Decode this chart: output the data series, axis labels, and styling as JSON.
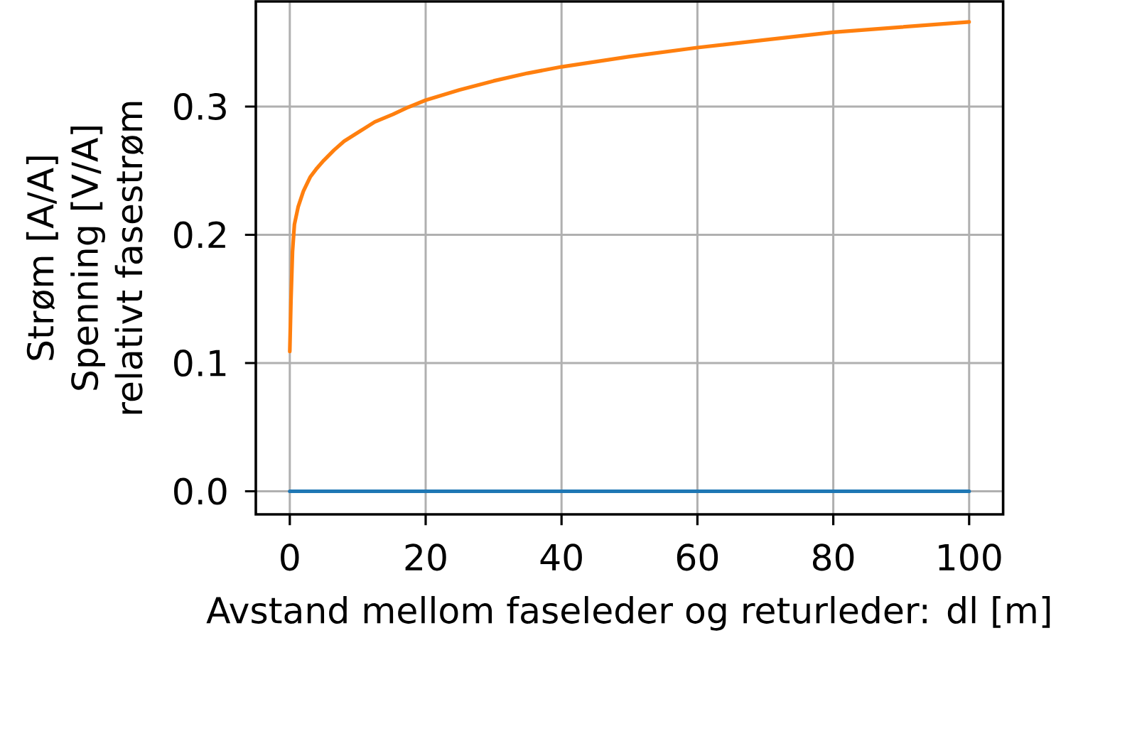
{
  "chart_data": {
    "type": "line",
    "xlabel": "Avstand mellom faseleder og returleder: dl [m]",
    "ylabel": "Strøm [A/A]\nSpenning [V/A]\nrelativt fasestrøm",
    "xlim": [
      -5,
      105
    ],
    "ylim": [
      -0.018,
      0.382
    ],
    "xticks": [
      0,
      20,
      40,
      60,
      80,
      100
    ],
    "yticks": [
      {
        "value": 0,
        "label": "0.0"
      },
      0.1,
      0.2,
      0.3
    ],
    "grid": true,
    "series": [
      {
        "color": "#1f77b4",
        "x": [
          0,
          25,
          50,
          75,
          100
        ],
        "values": [
          0,
          0,
          0,
          0,
          0
        ]
      },
      {
        "color": "#ff7f0e",
        "x": [
          0,
          0.17,
          0.4,
          0.68,
          1.24,
          2,
          3,
          4,
          5,
          6.5,
          8,
          10.4,
          12.5,
          15.2,
          17.2,
          20,
          25,
          30,
          35,
          40,
          50,
          60,
          70,
          80,
          90,
          100
        ],
        "values": [
          0.109,
          0.148,
          0.187,
          0.208,
          0.222,
          0.234,
          0.245,
          0.252,
          0.258,
          0.266,
          0.273,
          0.281,
          0.288,
          0.294,
          0.299,
          0.305,
          0.313,
          0.32,
          0.326,
          0.331,
          0.339,
          0.346,
          0.352,
          0.358,
          0.362,
          0.366
        ]
      }
    ]
  }
}
